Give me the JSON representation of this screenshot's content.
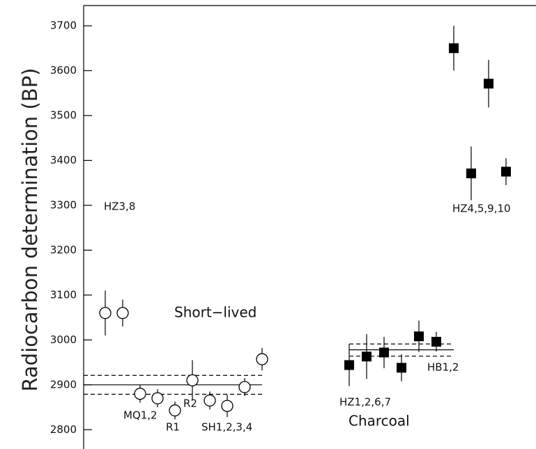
{
  "chart_data": {
    "type": "scatter",
    "y_label": "Radiocarbon determination (BP)",
    "ylim": [
      2757,
      3745
    ],
    "yticks": [
      2800,
      2900,
      3000,
      3100,
      3200,
      3300,
      3400,
      3500,
      3600,
      3700
    ],
    "xlim": [
      -0.24,
      25.72
    ],
    "series": [
      {
        "marker": "open-circle",
        "color": "#000000",
        "x": [
          1,
          2,
          3,
          4,
          5,
          6,
          7,
          8,
          9,
          10
        ],
        "values": [
          3060,
          3060,
          2880,
          2870,
          2843,
          2910,
          2865,
          2853,
          2895,
          2957
        ],
        "errors": [
          50,
          30,
          20,
          20,
          20,
          45,
          20,
          25,
          20,
          25
        ]
      },
      {
        "marker": "filled-square",
        "color": "#000000",
        "x": [
          15,
          16,
          17,
          18,
          19,
          20,
          21,
          22,
          23,
          24
        ],
        "values": [
          2944,
          2963,
          2972,
          2938,
          3008,
          2996,
          3650,
          3371,
          3571,
          3375
        ],
        "errors": [
          47,
          50,
          35,
          30,
          35,
          22,
          50,
          60,
          53,
          30
        ]
      }
    ],
    "reference_lines": [
      {
        "y": 2900,
        "style": "solid",
        "x": [
          -0.24,
          10
        ]
      },
      {
        "y": 2921,
        "style": "dashed",
        "x": [
          -0.24,
          10
        ]
      },
      {
        "y": 2879,
        "style": "dashed",
        "x": [
          -0.24,
          10
        ]
      },
      {
        "y": 2978,
        "style": "solid",
        "x": [
          15,
          21
        ]
      },
      {
        "y": 2991,
        "style": "dashed",
        "x": [
          15,
          21
        ]
      },
      {
        "y": 2964,
        "style": "dashed",
        "x": [
          15,
          21
        ]
      }
    ],
    "annotations": [
      "HZ3,8",
      "Short−lived",
      "MQ1,2",
      "R1",
      "R2",
      "SH1,2,3,4",
      "HZ1,2,6,7",
      "Charcoal",
      "HB1,2",
      "HZ4,5,9,10"
    ]
  }
}
